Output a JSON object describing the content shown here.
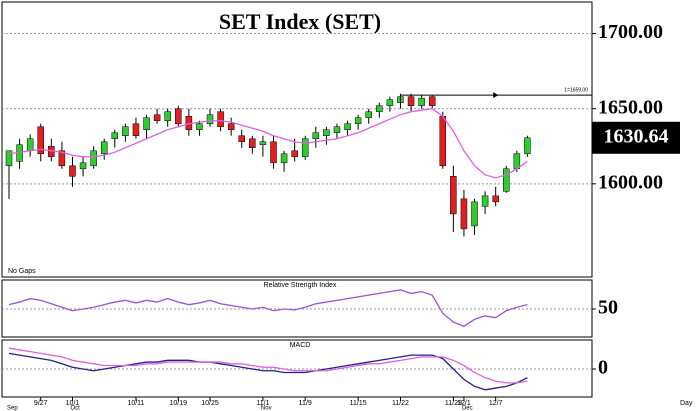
{
  "chart_data": [
    {
      "type": "candlestick",
      "title": "SET Index (SET)",
      "note": "No Gaps",
      "x_axis_label": "Day",
      "categories": [
        null,
        null,
        null,
        "9/27",
        null,
        null,
        "10/1",
        null,
        null,
        null,
        null,
        null,
        "10/11",
        null,
        null,
        null,
        "10/19",
        null,
        null,
        "10/25",
        null,
        null,
        null,
        null,
        "11/1",
        null,
        null,
        null,
        "11/9",
        null,
        null,
        null,
        null,
        "11/15",
        null,
        null,
        null,
        "11/22",
        null,
        null,
        null,
        null,
        "11/29",
        "12/1",
        null,
        null,
        "12/7",
        null,
        null,
        null
      ],
      "months": [
        "Sep",
        null,
        null,
        null,
        null,
        null,
        "Oct",
        null,
        null,
        null,
        null,
        null,
        null,
        null,
        null,
        null,
        null,
        null,
        null,
        null,
        null,
        null,
        null,
        null,
        "Nov",
        null,
        null,
        null,
        null,
        null,
        null,
        null,
        null,
        null,
        null,
        null,
        null,
        null,
        null,
        null,
        null,
        null,
        null,
        "Dec",
        null,
        null,
        null,
        null,
        null,
        null
      ],
      "open": [
        1612,
        1615,
        1622,
        1638,
        1625,
        1622,
        1612,
        1610,
        1612,
        1620,
        1630,
        1632,
        1640,
        1636,
        1646,
        1642,
        1650,
        1645,
        1636,
        1640,
        1648,
        1640,
        1632,
        1630,
        1626,
        1628,
        1614,
        1622,
        1618,
        1630,
        1632,
        1634,
        1636,
        1640,
        1644,
        1648,
        1652,
        1654,
        1658,
        1652,
        1658,
        1645,
        1605,
        1590,
        1572,
        1585,
        1592,
        1595,
        1610,
        1620
      ],
      "high": [
        1622,
        1630,
        1633,
        1640,
        1630,
        1628,
        1618,
        1618,
        1625,
        1630,
        1636,
        1640,
        1644,
        1646,
        1650,
        1650,
        1652,
        1650,
        1642,
        1650,
        1650,
        1644,
        1636,
        1632,
        1632,
        1632,
        1622,
        1630,
        1632,
        1638,
        1638,
        1640,
        1642,
        1646,
        1650,
        1654,
        1658,
        1660,
        1660,
        1659,
        1659,
        1648,
        1612,
        1596,
        1590,
        1595,
        1598,
        1612,
        1622,
        1632
      ],
      "low": [
        1590,
        1610,
        1618,
        1615,
        1615,
        1610,
        1598,
        1605,
        1610,
        1616,
        1624,
        1628,
        1630,
        1630,
        1640,
        1638,
        1638,
        1632,
        1632,
        1638,
        1635,
        1632,
        1624,
        1620,
        1618,
        1610,
        1608,
        1615,
        1616,
        1624,
        1626,
        1630,
        1632,
        1636,
        1640,
        1644,
        1648,
        1650,
        1648,
        1650,
        1650,
        1610,
        1568,
        1565,
        1566,
        1580,
        1585,
        1594,
        1608,
        1618
      ],
      "close": [
        1622,
        1626,
        1630,
        1620,
        1618,
        1612,
        1605,
        1614,
        1622,
        1628,
        1634,
        1638,
        1632,
        1644,
        1642,
        1648,
        1640,
        1636,
        1640,
        1646,
        1638,
        1636,
        1628,
        1624,
        1628,
        1614,
        1620,
        1618,
        1630,
        1634,
        1636,
        1638,
        1640,
        1644,
        1648,
        1652,
        1656,
        1658,
        1652,
        1657,
        1652,
        1612,
        1580,
        1570,
        1588,
        1592,
        1588,
        1610,
        1620,
        1630.64
      ],
      "up_color": "#2ecc2e",
      "down_color": "#e02020",
      "moving_average": {
        "color": "#e060e0",
        "values": [
          1620,
          1621,
          1622,
          1623,
          1622,
          1621,
          1619,
          1618,
          1618,
          1619,
          1621,
          1624,
          1627,
          1630,
          1633,
          1636,
          1638,
          1640,
          1641,
          1642,
          1642,
          1641,
          1639,
          1637,
          1635,
          1632,
          1630,
          1628,
          1627,
          1628,
          1629,
          1630,
          1632,
          1634,
          1637,
          1640,
          1643,
          1646,
          1648,
          1649,
          1650,
          1645,
          1635,
          1622,
          1612,
          1606,
          1604,
          1606,
          1610,
          1615
        ]
      },
      "reference": {
        "value": 1659,
        "label": "1=1659.00"
      },
      "ylim": [
        1538,
        1721
      ],
      "yticks": [
        {
          "value": 1600,
          "label": "1600.00"
        },
        {
          "value": 1650,
          "label": "1650.00"
        },
        {
          "value": 1700,
          "label": "1700.00"
        }
      ],
      "grid": true
    },
    {
      "type": "line",
      "title": "Relative Strength Index",
      "series": [
        {
          "color": "#9a50e0",
          "values": [
            55,
            58,
            62,
            60,
            56,
            52,
            48,
            50,
            52,
            55,
            58,
            60,
            57,
            60,
            58,
            62,
            58,
            55,
            57,
            60,
            56,
            54,
            52,
            50,
            52,
            48,
            50,
            49,
            52,
            56,
            58,
            60,
            62,
            64,
            66,
            68,
            70,
            72,
            68,
            70,
            66,
            45,
            35,
            30,
            38,
            42,
            40,
            48,
            52,
            55
          ]
        }
      ],
      "ylim": [
        20,
        80
      ],
      "yticks": [
        50
      ],
      "grid": true
    },
    {
      "type": "line",
      "title": "MACD",
      "series": [
        {
          "color": "#202090",
          "values": [
            9,
            8,
            7,
            6,
            5,
            3,
            1,
            0,
            -1,
            0,
            1,
            2,
            3,
            4,
            4,
            5,
            5,
            5,
            4,
            4,
            3,
            2,
            1,
            0,
            -1,
            -1,
            -2,
            -2,
            -2,
            -1,
            0,
            1,
            2,
            3,
            4,
            5,
            6,
            7,
            8,
            8,
            8,
            6,
            0,
            -6,
            -10,
            -12,
            -11,
            -10,
            -8,
            -5
          ]
        },
        {
          "color": "#e060e0",
          "values": [
            12,
            11,
            10,
            9,
            8,
            7,
            5,
            4,
            3,
            2,
            2,
            2,
            2,
            3,
            3,
            4,
            4,
            4,
            4,
            4,
            4,
            3,
            3,
            2,
            1,
            1,
            0,
            -1,
            -1,
            -1,
            -1,
            0,
            1,
            2,
            3,
            3,
            4,
            5,
            6,
            7,
            7,
            7,
            5,
            2,
            -2,
            -5,
            -7,
            -8,
            -8,
            -7
          ]
        }
      ],
      "ylim": [
        -15,
        15
      ],
      "yticks": [
        0
      ],
      "grid": true
    }
  ]
}
